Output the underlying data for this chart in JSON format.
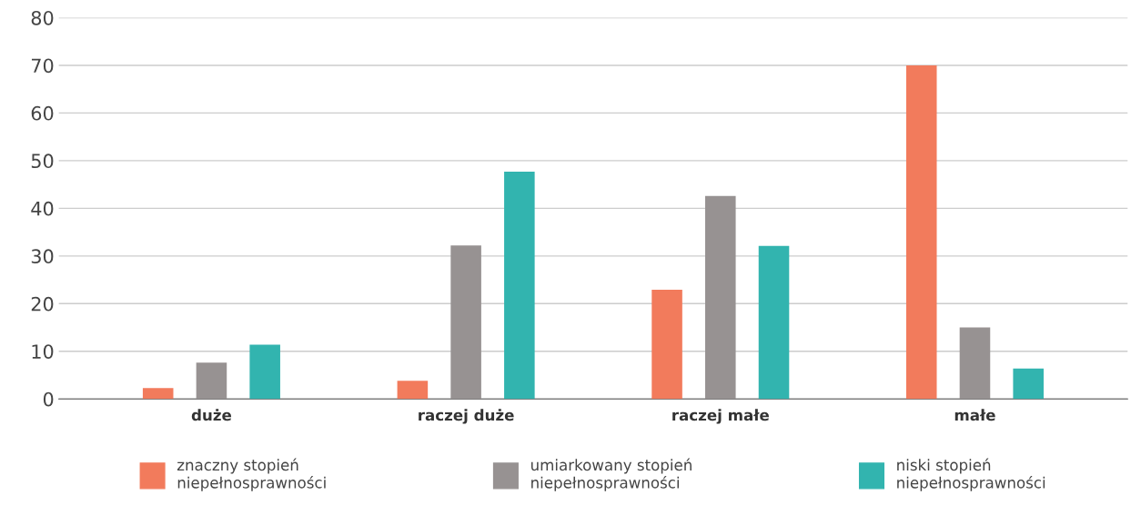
{
  "chart_data": {
    "type": "bar",
    "categories": [
      "duże",
      "raczej duże",
      "raczej małe",
      "małe"
    ],
    "series": [
      {
        "name": "znaczny stopień\nniepełnosprawności",
        "color": "#f27b5c",
        "values": [
          2.3,
          3.8,
          22.9,
          70.0
        ]
      },
      {
        "name": "umiarkowany stopień\nniepełnosprawności",
        "color": "#979292",
        "values": [
          7.6,
          32.2,
          42.6,
          15.0
        ]
      },
      {
        "name": "niski stopień\nniepełnosprawności",
        "color": "#32b4af",
        "values": [
          11.4,
          47.7,
          32.1,
          6.4
        ]
      }
    ],
    "ylim": [
      0,
      80
    ],
    "yticks": [
      0,
      10,
      20,
      30,
      40,
      50,
      60,
      70,
      80
    ],
    "grid": "y",
    "legend": "bottom"
  }
}
